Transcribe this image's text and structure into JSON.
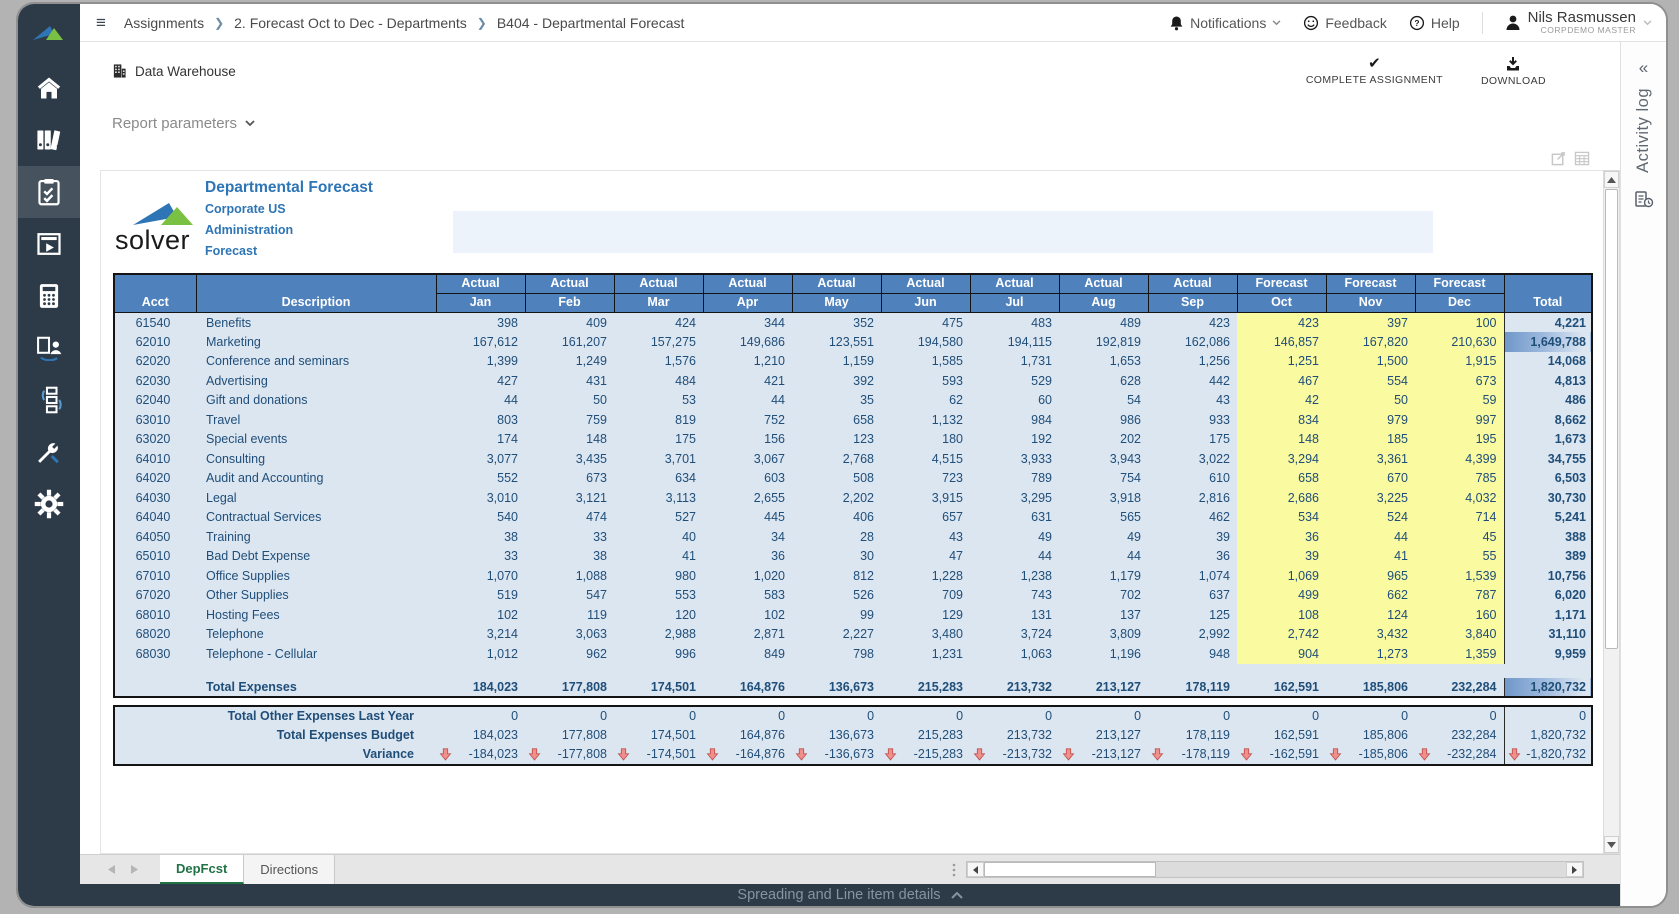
{
  "chrome": {
    "breadcrumb": [
      "Assignments",
      "2. Forecast Oct to Dec - Departments",
      "B404 - Departmental Forecast"
    ],
    "notifications_label": "Notifications",
    "feedback_label": "Feedback",
    "help_label": "Help",
    "user_name": "Nils Rasmussen",
    "user_role": "CorpDemo Master"
  },
  "toolbar": {
    "data_warehouse_label": "Data Warehouse",
    "complete_assignment_label": "COMPLETE ASSIGNMENT",
    "download_label": "DOWNLOAD"
  },
  "report_parameters_label": "Report parameters",
  "activity_log_label": "Activity log",
  "report_header": {
    "logo_text": "solver",
    "title": "Departmental Forecast",
    "subtitle1": "Corporate US",
    "subtitle2": "Administration",
    "subtitle3": "Forecast"
  },
  "colors": {
    "header_blue": "#4f81bd",
    "cell_blue": "#dce6f1",
    "forecast_yellow": "#fafaa0",
    "text_navy": "#1f4e79",
    "sidebar_dark": "#2d3a48",
    "tab_green": "#217346",
    "variance_arrow_red": "#d9534f"
  },
  "table": {
    "headers": {
      "acct": "Acct",
      "description": "Description",
      "total": "Total"
    },
    "columns": [
      {
        "group": "Actual",
        "month": "Jan"
      },
      {
        "group": "Actual",
        "month": "Feb"
      },
      {
        "group": "Actual",
        "month": "Mar"
      },
      {
        "group": "Actual",
        "month": "Apr"
      },
      {
        "group": "Actual",
        "month": "May"
      },
      {
        "group": "Actual",
        "month": "Jun"
      },
      {
        "group": "Actual",
        "month": "Jul"
      },
      {
        "group": "Actual",
        "month": "Aug"
      },
      {
        "group": "Actual",
        "month": "Sep"
      },
      {
        "group": "Forecast",
        "month": "Oct"
      },
      {
        "group": "Forecast",
        "month": "Nov"
      },
      {
        "group": "Forecast",
        "month": "Dec"
      }
    ],
    "rows": [
      {
        "acct": "61540",
        "desc": "Benefits",
        "values": [
          "398",
          "409",
          "424",
          "344",
          "352",
          "475",
          "483",
          "489",
          "423",
          "423",
          "397",
          "100"
        ],
        "total": "4,221",
        "bar": false
      },
      {
        "acct": "62010",
        "desc": "Marketing",
        "values": [
          "167,612",
          "161,207",
          "157,275",
          "149,686",
          "123,551",
          "194,580",
          "194,115",
          "192,819",
          "162,086",
          "146,857",
          "167,820",
          "210,630"
        ],
        "total": "1,649,788",
        "bar": true
      },
      {
        "acct": "62020",
        "desc": "Conference and seminars",
        "values": [
          "1,399",
          "1,249",
          "1,576",
          "1,210",
          "1,159",
          "1,585",
          "1,731",
          "1,653",
          "1,256",
          "1,251",
          "1,500",
          "1,915"
        ],
        "total": "14,068",
        "bar": false
      },
      {
        "acct": "62030",
        "desc": "Advertising",
        "values": [
          "427",
          "431",
          "484",
          "421",
          "392",
          "593",
          "529",
          "628",
          "442",
          "467",
          "554",
          "673"
        ],
        "total": "4,813",
        "bar": false
      },
      {
        "acct": "62040",
        "desc": "Gift and donations",
        "values": [
          "44",
          "50",
          "53",
          "44",
          "35",
          "62",
          "60",
          "54",
          "43",
          "42",
          "50",
          "59"
        ],
        "total": "486",
        "bar": false
      },
      {
        "acct": "63010",
        "desc": "Travel",
        "values": [
          "803",
          "759",
          "819",
          "752",
          "658",
          "1,132",
          "984",
          "986",
          "933",
          "834",
          "979",
          "997"
        ],
        "total": "8,662",
        "bar": false
      },
      {
        "acct": "63020",
        "desc": "Special events",
        "values": [
          "174",
          "148",
          "175",
          "156",
          "123",
          "180",
          "192",
          "202",
          "175",
          "148",
          "185",
          "195"
        ],
        "total": "1,673",
        "bar": false
      },
      {
        "acct": "64010",
        "desc": "Consulting",
        "values": [
          "3,077",
          "3,435",
          "3,701",
          "3,067",
          "2,768",
          "4,515",
          "3,933",
          "3,943",
          "3,022",
          "3,294",
          "3,361",
          "4,399"
        ],
        "total": "34,755",
        "bar": false
      },
      {
        "acct": "64020",
        "desc": "Audit and Accounting",
        "values": [
          "552",
          "673",
          "634",
          "603",
          "508",
          "723",
          "789",
          "754",
          "610",
          "658",
          "670",
          "785"
        ],
        "total": "6,503",
        "bar": false
      },
      {
        "acct": "64030",
        "desc": "Legal",
        "values": [
          "3,010",
          "3,121",
          "3,113",
          "2,655",
          "2,202",
          "3,915",
          "3,295",
          "3,918",
          "2,816",
          "2,686",
          "3,225",
          "4,032"
        ],
        "total": "30,730",
        "bar": false
      },
      {
        "acct": "64040",
        "desc": "Contractual Services",
        "values": [
          "540",
          "474",
          "527",
          "445",
          "406",
          "657",
          "631",
          "565",
          "462",
          "534",
          "524",
          "714"
        ],
        "total": "5,241",
        "bar": false
      },
      {
        "acct": "64050",
        "desc": "Training",
        "values": [
          "38",
          "33",
          "40",
          "34",
          "28",
          "43",
          "49",
          "49",
          "39",
          "36",
          "44",
          "45"
        ],
        "total": "388",
        "bar": false
      },
      {
        "acct": "65010",
        "desc": "Bad Debt Expense",
        "values": [
          "33",
          "38",
          "41",
          "36",
          "30",
          "47",
          "44",
          "44",
          "36",
          "39",
          "41",
          "55"
        ],
        "total": "389",
        "bar": false
      },
      {
        "acct": "67010",
        "desc": "Office Supplies",
        "values": [
          "1,070",
          "1,088",
          "980",
          "1,020",
          "812",
          "1,228",
          "1,238",
          "1,179",
          "1,074",
          "1,069",
          "965",
          "1,539"
        ],
        "total": "10,756",
        "bar": false
      },
      {
        "acct": "67020",
        "desc": "Other Supplies",
        "values": [
          "519",
          "547",
          "553",
          "583",
          "526",
          "709",
          "743",
          "702",
          "637",
          "499",
          "662",
          "787"
        ],
        "total": "6,020",
        "bar": false
      },
      {
        "acct": "68010",
        "desc": "Hosting Fees",
        "values": [
          "102",
          "119",
          "120",
          "102",
          "99",
          "129",
          "131",
          "137",
          "125",
          "108",
          "124",
          "160"
        ],
        "total": "1,171",
        "bar": false
      },
      {
        "acct": "68020",
        "desc": "Telephone",
        "values": [
          "3,214",
          "3,063",
          "2,988",
          "2,871",
          "2,227",
          "3,480",
          "3,724",
          "3,809",
          "2,992",
          "2,742",
          "3,432",
          "3,840"
        ],
        "total": "31,110",
        "bar": false
      },
      {
        "acct": "68030",
        "desc": "Telephone - Cellular",
        "values": [
          "1,012",
          "962",
          "996",
          "849",
          "798",
          "1,231",
          "1,063",
          "1,196",
          "948",
          "904",
          "1,273",
          "1,359"
        ],
        "total": "9,959",
        "bar": false
      }
    ],
    "total_row": {
      "label": "Total Expenses",
      "values": [
        "184,023",
        "177,808",
        "174,501",
        "164,876",
        "136,673",
        "215,283",
        "213,732",
        "213,127",
        "178,119",
        "162,591",
        "185,806",
        "232,284"
      ],
      "total": "1,820,732",
      "bar": true
    },
    "summary_rows": [
      {
        "label": "Total Other Expenses Last Year",
        "values": [
          "0",
          "0",
          "0",
          "0",
          "0",
          "0",
          "0",
          "0",
          "0",
          "0",
          "0",
          "0"
        ],
        "total": "0",
        "arrows": false
      },
      {
        "label": "Total Expenses Budget",
        "values": [
          "184,023",
          "177,808",
          "174,501",
          "164,876",
          "136,673",
          "215,283",
          "213,732",
          "213,127",
          "178,119",
          "162,591",
          "185,806",
          "232,284"
        ],
        "total": "1,820,732",
        "arrows": false
      },
      {
        "label": "Variance",
        "values": [
          "-184,023",
          "-177,808",
          "-174,501",
          "-164,876",
          "-136,673",
          "-215,283",
          "-213,732",
          "-213,127",
          "-178,119",
          "-162,591",
          "-185,806",
          "-232,284"
        ],
        "total": "-1,820,732",
        "arrows": true
      }
    ]
  },
  "tabs": {
    "sheet1": "DepFcst",
    "sheet2": "Directions"
  },
  "footer": {
    "spreading_label": "Spreading and Line item details"
  }
}
